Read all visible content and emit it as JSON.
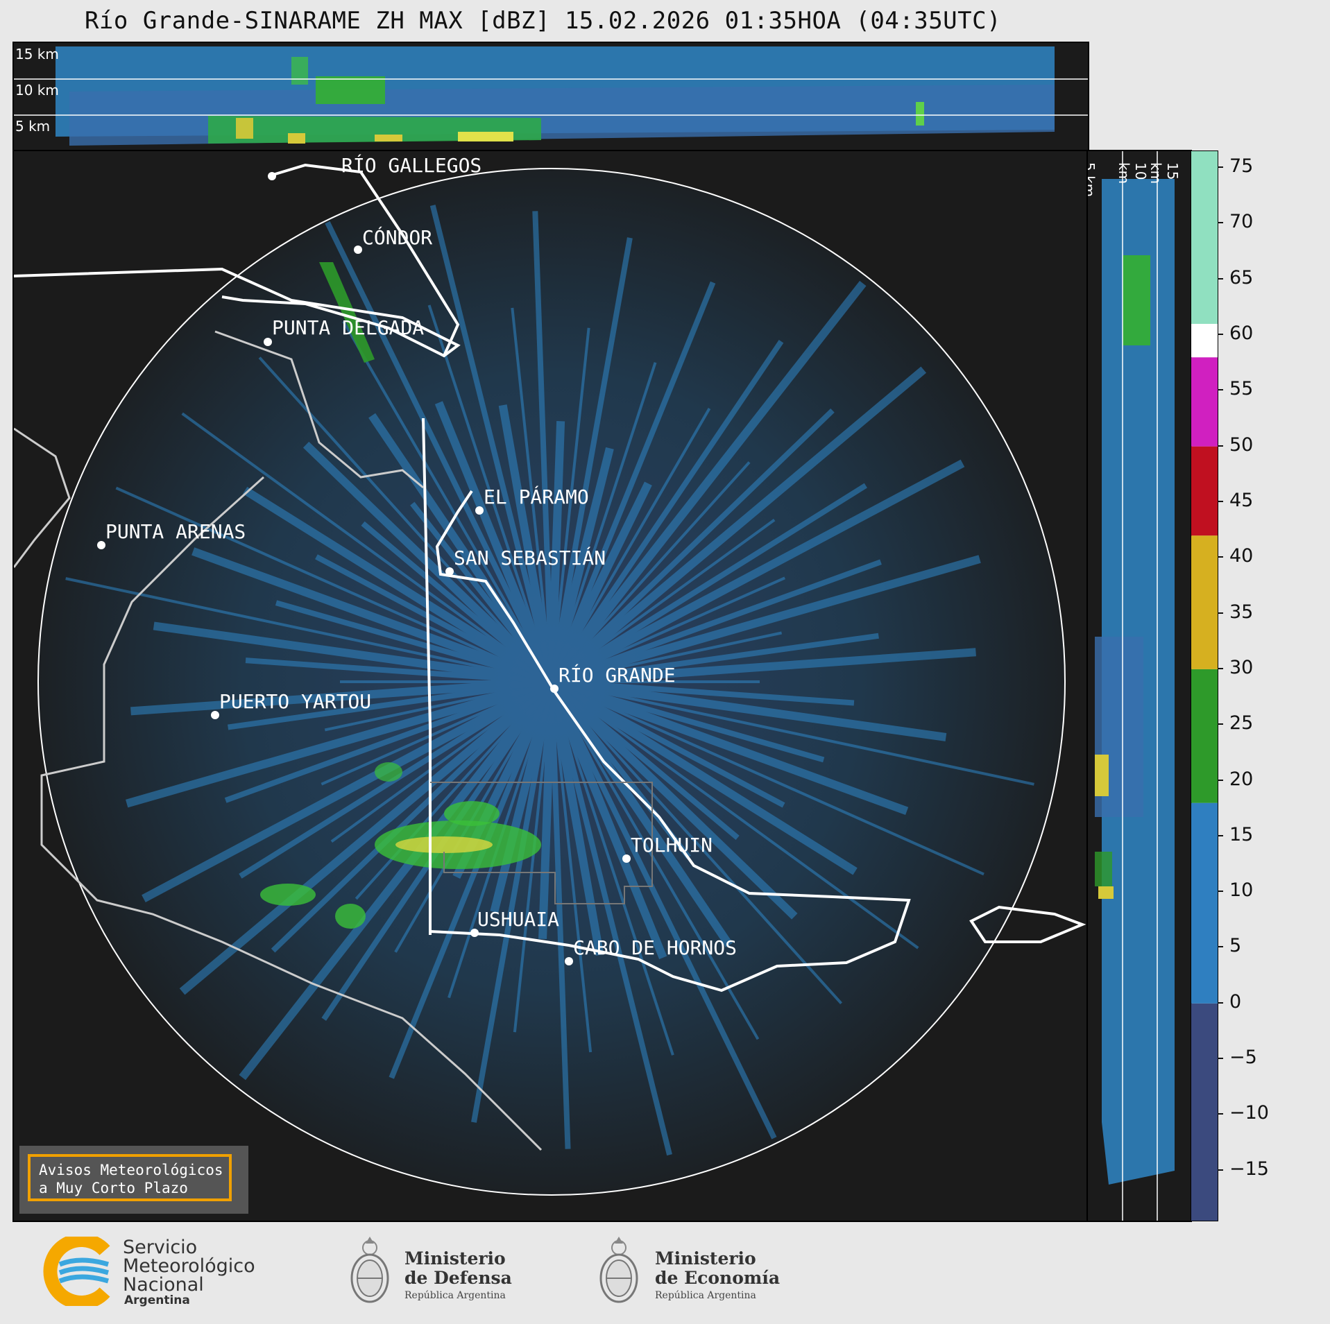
{
  "title": "Río Grande-SINARAME ZH MAX [dBZ] 15.02.2026 01:35HOA (04:35UTC)",
  "top_panel": {
    "height_labels": [
      "15 km",
      "10 km",
      "5 km"
    ]
  },
  "side_panel": {
    "height_labels": [
      "5 km",
      "10 km",
      "15 km"
    ]
  },
  "colorbar": {
    "unit": "dBZ",
    "ticks": [
      "75",
      "70",
      "65",
      "60",
      "55",
      "50",
      "45",
      "40",
      "35",
      "30",
      "25",
      "20",
      "15",
      "10",
      "5",
      "0",
      "−5",
      "−10",
      "−15"
    ],
    "range": [
      -19.5,
      76.5
    ],
    "stops": [
      {
        "from": -19.5,
        "to": 0,
        "color": "#3b4a7e"
      },
      {
        "from": 0,
        "to": 18,
        "color": "#2f7fc0"
      },
      {
        "from": 18,
        "to": 30,
        "color": "#2e9a2a"
      },
      {
        "from": 30,
        "to": 42,
        "color": "#d6b020"
      },
      {
        "from": 42,
        "to": 50,
        "color": "#c01020"
      },
      {
        "from": 50,
        "to": 58,
        "color": "#d020c0"
      },
      {
        "from": 58,
        "to": 61,
        "color": "#ffffff"
      },
      {
        "from": 61,
        "to": 76.5,
        "color": "#90e0c0"
      }
    ]
  },
  "cities": [
    {
      "name": "RÍO GALLEGOS"
    },
    {
      "name": "CÓNDOR"
    },
    {
      "name": "PUNTA DELGADA"
    },
    {
      "name": "EL PÁRAMO"
    },
    {
      "name": "PUNTA ARENAS"
    },
    {
      "name": "SAN SEBASTIÁN"
    },
    {
      "name": "RÍO GRANDE"
    },
    {
      "name": "PUERTO YARTOU"
    },
    {
      "name": "TOLHUIN"
    },
    {
      "name": "USHUAIA"
    },
    {
      "name": "CABO DE HORNOS"
    }
  ],
  "warning_box": {
    "line1": "Avisos Meteorológicos",
    "line2": "a Muy Corto Plazo"
  },
  "logos": {
    "smn": {
      "line1": "Servicio",
      "line2": "Meteorológico",
      "line3": "Nacional",
      "line4": "Argentina"
    },
    "defensa": {
      "line1": "Ministerio",
      "line2": "de Defensa",
      "line3": "República Argentina"
    },
    "economia": {
      "line1": "Ministerio",
      "line2": "de Economía",
      "line3": "República Argentina"
    }
  }
}
